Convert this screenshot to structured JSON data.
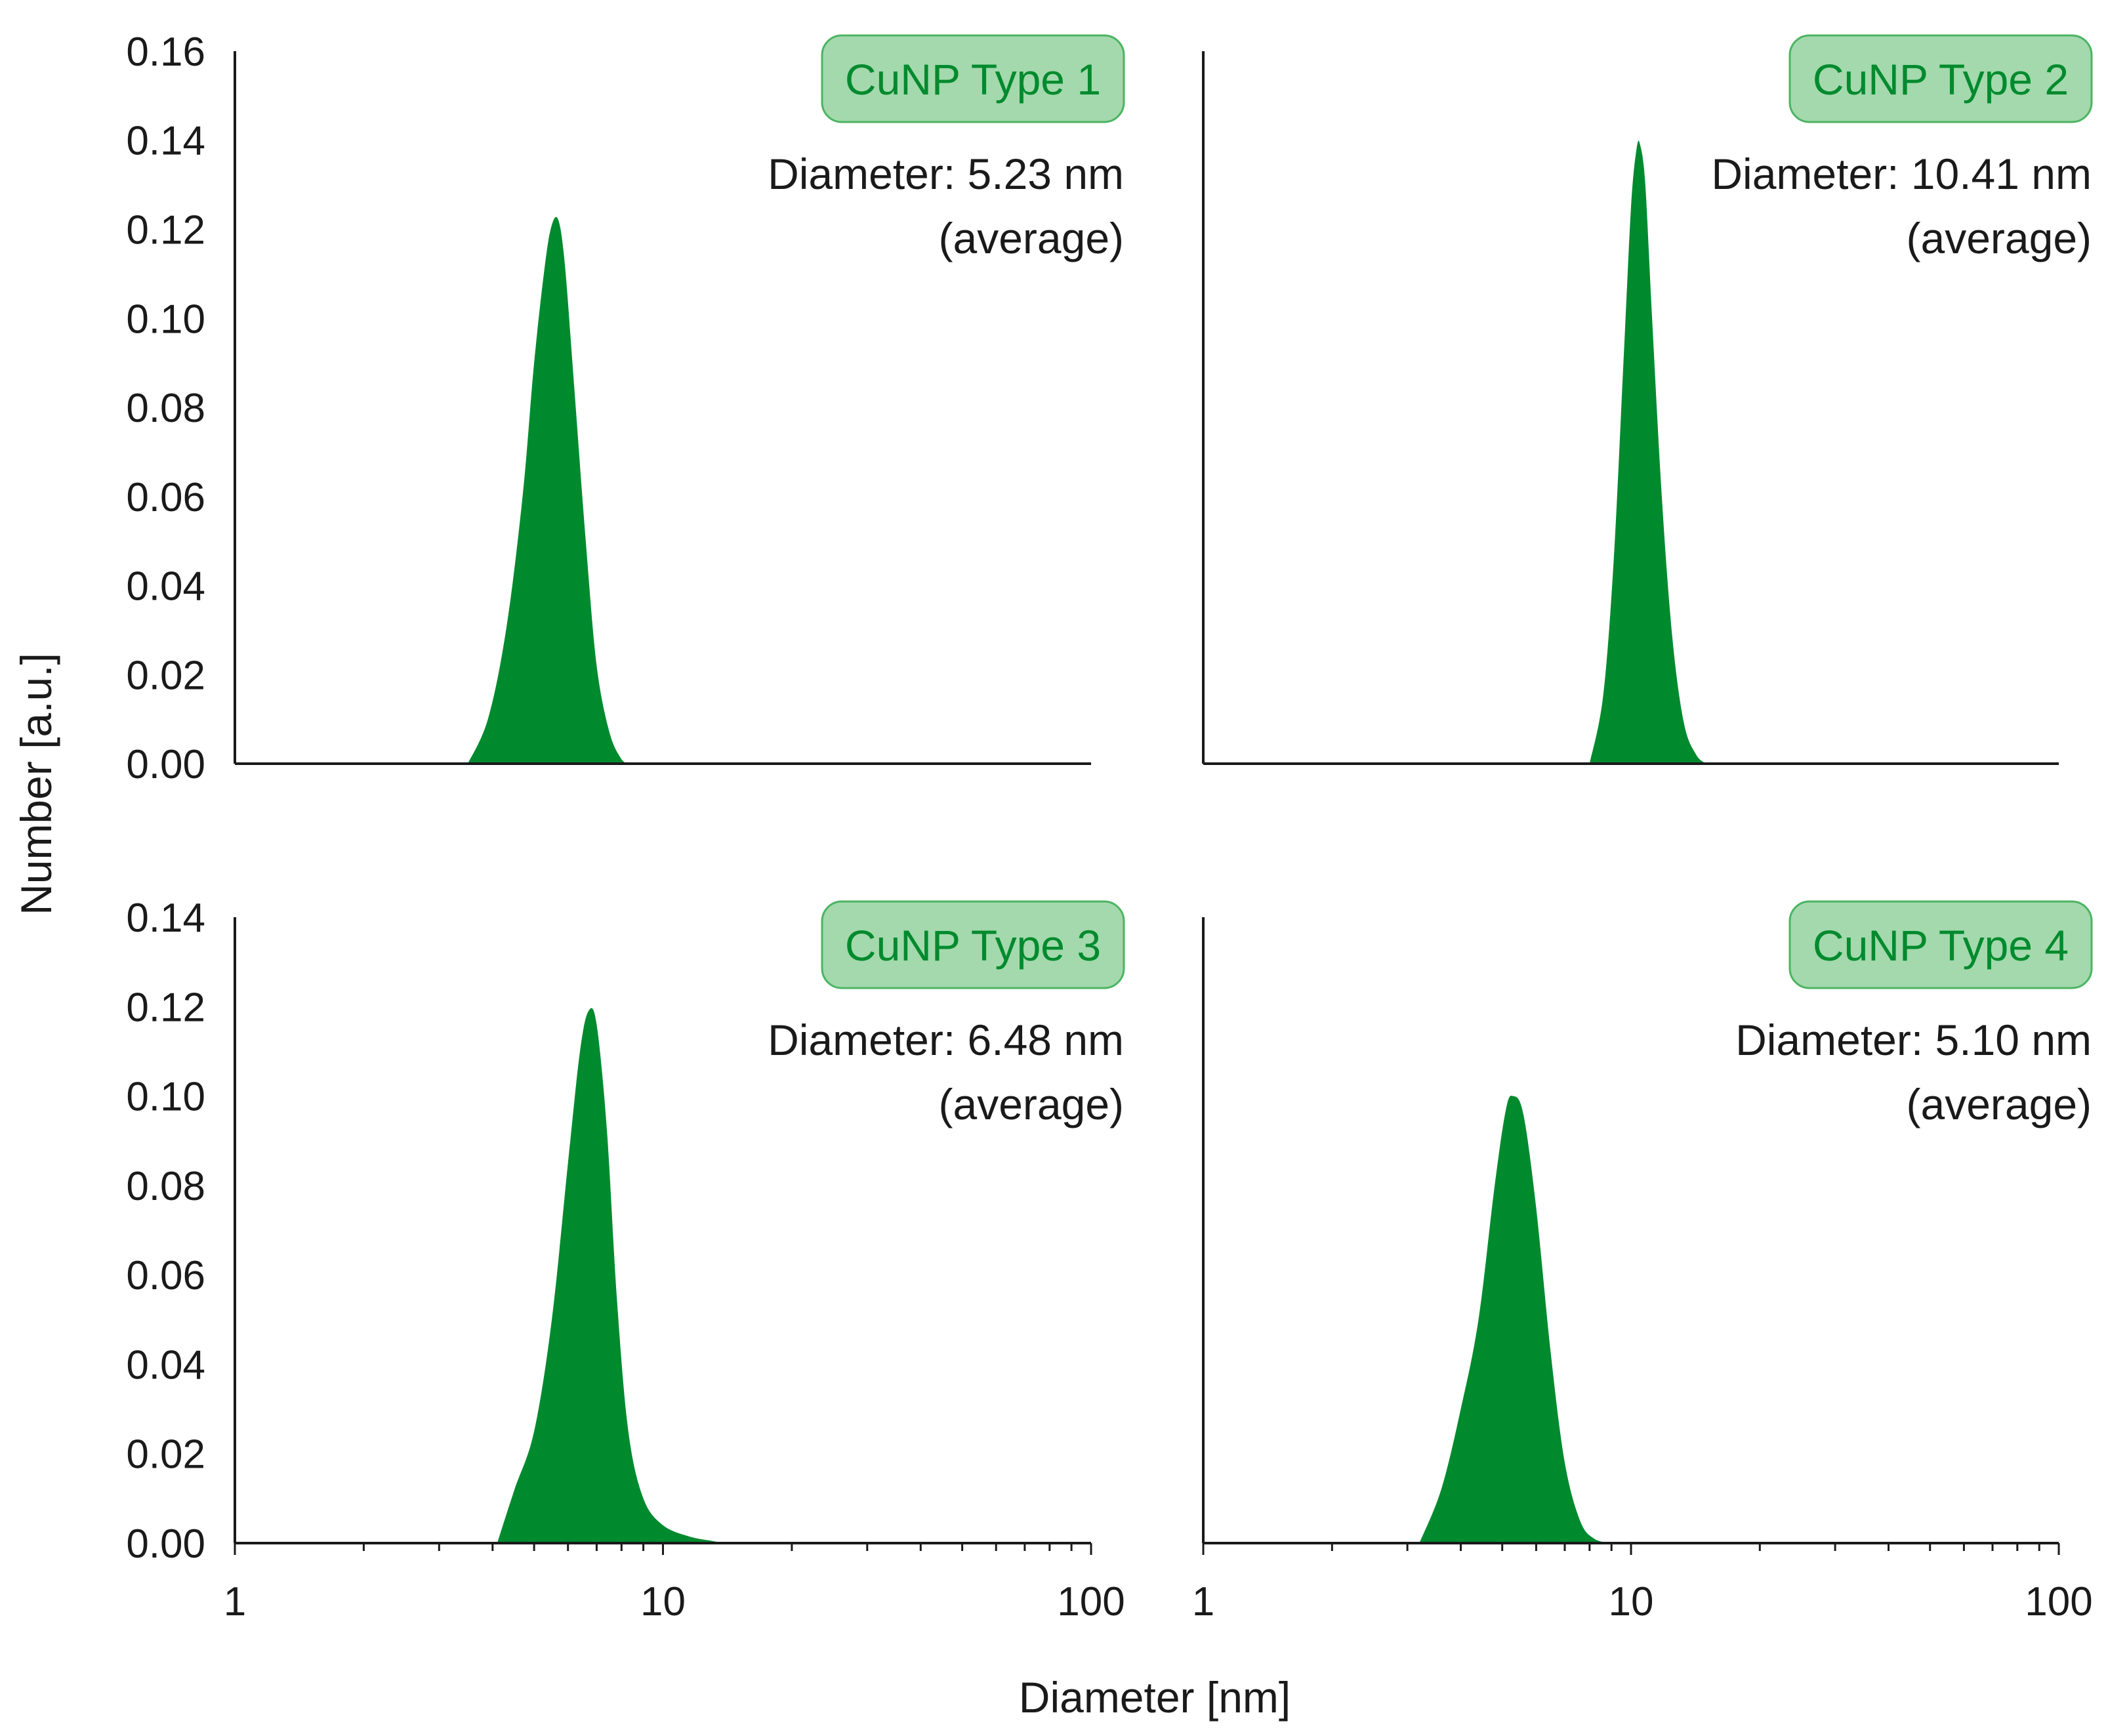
{
  "figure": {
    "ylabel": "Number [a.u.]",
    "xlabel": "Diameter [nm]",
    "fill_color": "#008a2e",
    "badge_fill": "#a3d9ac",
    "badge_stroke": "#4cb463",
    "badge_text_color": "#008a2e",
    "axis_color": "#1a1a1a"
  },
  "chart_data": [
    {
      "type": "area",
      "title": "CuNP Type 1",
      "annotation": [
        "Diameter: 5.23 nm",
        "(average)"
      ],
      "x_scale": "log",
      "xlim": [
        1,
        100
      ],
      "ylim": [
        0,
        0.16
      ],
      "y_ticks": [
        "0.00",
        "0.02",
        "0.04",
        "0.06",
        "0.08",
        "0.10",
        "0.12",
        "0.14",
        "0.16"
      ],
      "x_ticks": [],
      "grid": false,
      "x": [
        3.5,
        3.9,
        4.3,
        4.7,
        5.0,
        5.3,
        5.5,
        5.7,
        5.9,
        6.2,
        6.6,
        7.0,
        7.5,
        8.0,
        8.3
      ],
      "y": [
        0.0,
        0.01,
        0.03,
        0.06,
        0.09,
        0.112,
        0.121,
        0.122,
        0.112,
        0.085,
        0.05,
        0.022,
        0.007,
        0.001,
        0.0
      ]
    },
    {
      "type": "area",
      "title": "CuNP Type 2",
      "annotation": [
        "Diameter: 10.41 nm",
        "(average)"
      ],
      "x_scale": "log",
      "xlim": [
        1,
        100
      ],
      "ylim": [
        0,
        0.16
      ],
      "y_ticks": [],
      "x_ticks": [],
      "grid": false,
      "x": [
        8.0,
        8.6,
        9.1,
        9.6,
        10.0,
        10.3,
        10.5,
        10.8,
        11.2,
        11.8,
        12.5,
        13.3,
        14.2,
        15.0
      ],
      "y": [
        0.0,
        0.015,
        0.045,
        0.09,
        0.125,
        0.138,
        0.139,
        0.13,
        0.1,
        0.06,
        0.028,
        0.009,
        0.002,
        0.0
      ]
    },
    {
      "type": "area",
      "title": "CuNP Type 3",
      "annotation": [
        "Diameter: 6.48 nm",
        "(average)"
      ],
      "x_scale": "log",
      "xlim": [
        1,
        100
      ],
      "ylim": [
        0,
        0.14
      ],
      "y_ticks": [
        "0.00",
        "0.02",
        "0.04",
        "0.06",
        "0.08",
        "0.10",
        "0.12",
        "0.14"
      ],
      "x_ticks": [
        "1",
        "10",
        "100"
      ],
      "grid": false,
      "x": [
        4.1,
        4.5,
        5.0,
        5.5,
        6.0,
        6.4,
        6.7,
        7.0,
        7.4,
        7.8,
        8.3,
        9.0,
        10.0,
        11.5,
        13.0,
        14.0
      ],
      "y": [
        0.0,
        0.012,
        0.025,
        0.05,
        0.085,
        0.11,
        0.119,
        0.116,
        0.092,
        0.055,
        0.025,
        0.01,
        0.004,
        0.0015,
        0.0005,
        0.0
      ]
    },
    {
      "type": "area",
      "title": "CuNP Type 4",
      "annotation": [
        "Diameter: 5.10 nm",
        "(average)"
      ],
      "x_scale": "log",
      "xlim": [
        1,
        100
      ],
      "ylim": [
        0,
        0.14
      ],
      "y_ticks": [],
      "x_ticks": [
        "1",
        "10",
        "100"
      ],
      "grid": false,
      "x": [
        3.2,
        3.6,
        4.0,
        4.4,
        4.8,
        5.1,
        5.3,
        5.6,
        6.0,
        6.5,
        7.0,
        7.6,
        8.2,
        9.0
      ],
      "y": [
        0.0,
        0.012,
        0.03,
        0.05,
        0.08,
        0.097,
        0.1,
        0.096,
        0.075,
        0.042,
        0.018,
        0.005,
        0.001,
        0.0
      ]
    }
  ]
}
